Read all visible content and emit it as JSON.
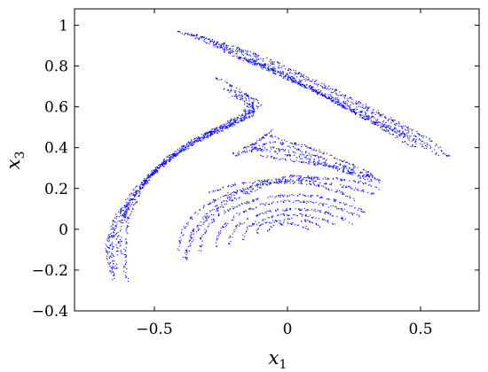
{
  "chart_data": {
    "type": "scatter",
    "title": "",
    "xlabel": "x",
    "xlabel_subscript": "1",
    "ylabel": "x",
    "ylabel_subscript": "3",
    "xlim": [
      -0.8,
      0.72
    ],
    "ylim": [
      -0.4,
      1.08
    ],
    "xticks": [
      -0.5,
      0,
      0.5
    ],
    "xtick_labels": [
      "−0.5",
      "0",
      "0.5"
    ],
    "yticks": [
      -0.4,
      -0.2,
      0,
      0.2,
      0.4,
      0.6,
      0.8,
      1
    ],
    "ytick_labels": [
      "−0.4",
      "−0.2",
      "0",
      "0.2",
      "0.4",
      "0.6",
      "0.8",
      "1"
    ],
    "grid": false,
    "legend": "none",
    "marker_color": "#0000ff",
    "approx_point_count": 4000,
    "series": [
      {
        "structure": "upper-right band",
        "strands": [
          [
            [
              -0.43,
              0.97
            ],
            [
              -0.34,
              0.95
            ],
            [
              -0.22,
              0.9
            ],
            [
              -0.08,
              0.84
            ],
            [
              0.05,
              0.76
            ],
            [
              0.18,
              0.68
            ],
            [
              0.3,
              0.6
            ],
            [
              0.42,
              0.52
            ],
            [
              0.53,
              0.44
            ],
            [
              0.61,
              0.35
            ]
          ],
          [
            [
              -0.39,
              0.96
            ],
            [
              -0.3,
              0.93
            ],
            [
              -0.2,
              0.88
            ],
            [
              -0.07,
              0.82
            ],
            [
              0.06,
              0.74
            ],
            [
              0.19,
              0.66
            ],
            [
              0.31,
              0.58
            ],
            [
              0.43,
              0.5
            ],
            [
              0.52,
              0.42
            ],
            [
              0.57,
              0.36
            ]
          ],
          [
            [
              -0.35,
              0.94
            ],
            [
              -0.26,
              0.9
            ],
            [
              -0.17,
              0.85
            ],
            [
              -0.05,
              0.79
            ],
            [
              0.07,
              0.71
            ],
            [
              0.2,
              0.63
            ],
            [
              0.32,
              0.55
            ],
            [
              0.44,
              0.47
            ],
            [
              0.51,
              0.41
            ]
          ],
          [
            [
              -0.3,
              0.91
            ],
            [
              -0.22,
              0.87
            ],
            [
              -0.14,
              0.82
            ],
            [
              -0.04,
              0.76
            ],
            [
              0.08,
              0.69
            ],
            [
              0.21,
              0.61
            ],
            [
              0.33,
              0.53
            ],
            [
              0.44,
              0.46
            ]
          ],
          [
            [
              -0.24,
              0.87
            ],
            [
              -0.16,
              0.83
            ],
            [
              -0.08,
              0.79
            ],
            [
              0.02,
              0.73
            ],
            [
              0.14,
              0.65
            ],
            [
              0.26,
              0.57
            ],
            [
              0.37,
              0.5
            ],
            [
              0.47,
              0.43
            ],
            [
              0.52,
              0.4
            ]
          ],
          [
            [
              -0.18,
              0.84
            ],
            [
              -0.11,
              0.81
            ],
            [
              -0.03,
              0.77
            ],
            [
              0.06,
              0.71
            ],
            [
              0.17,
              0.63
            ],
            [
              0.28,
              0.55
            ],
            [
              0.38,
              0.48
            ]
          ],
          [
            [
              -0.14,
              0.83
            ],
            [
              -0.07,
              0.79
            ],
            [
              0.0,
              0.74
            ],
            [
              0.1,
              0.68
            ],
            [
              0.2,
              0.61
            ],
            [
              0.31,
              0.53
            ],
            [
              0.4,
              0.46
            ],
            [
              0.48,
              0.4
            ]
          ]
        ]
      },
      {
        "structure": "left horseshoe",
        "strands": [
          [
            [
              -0.22,
              0.68
            ],
            [
              -0.14,
              0.63
            ],
            [
              -0.12,
              0.58
            ],
            [
              -0.22,
              0.52
            ],
            [
              -0.35,
              0.44
            ],
            [
              -0.47,
              0.33
            ],
            [
              -0.57,
              0.2
            ],
            [
              -0.65,
              0.05
            ],
            [
              -0.68,
              -0.08
            ],
            [
              -0.67,
              -0.18
            ],
            [
              -0.65,
              -0.25
            ]
          ],
          [
            [
              -0.21,
              0.66
            ],
            [
              -0.13,
              0.61
            ],
            [
              -0.13,
              0.56
            ],
            [
              -0.25,
              0.49
            ],
            [
              -0.37,
              0.41
            ],
            [
              -0.49,
              0.3
            ],
            [
              -0.58,
              0.17
            ],
            [
              -0.65,
              0.03
            ],
            [
              -0.67,
              -0.1
            ],
            [
              -0.65,
              -0.22
            ]
          ],
          [
            [
              -0.18,
              0.64
            ],
            [
              -0.13,
              0.6
            ],
            [
              -0.16,
              0.54
            ],
            [
              -0.28,
              0.47
            ],
            [
              -0.4,
              0.38
            ],
            [
              -0.51,
              0.27
            ],
            [
              -0.59,
              0.14
            ],
            [
              -0.65,
              0.0
            ],
            [
              -0.66,
              -0.12
            ],
            [
              -0.64,
              -0.2
            ]
          ],
          [
            [
              -0.16,
              0.62
            ],
            [
              -0.14,
              0.58
            ],
            [
              -0.21,
              0.52
            ],
            [
              -0.32,
              0.45
            ],
            [
              -0.43,
              0.36
            ],
            [
              -0.53,
              0.24
            ],
            [
              -0.6,
              0.11
            ],
            [
              -0.64,
              -0.02
            ],
            [
              -0.64,
              -0.13
            ]
          ],
          [
            [
              -0.15,
              0.61
            ],
            [
              -0.17,
              0.56
            ],
            [
              -0.26,
              0.5
            ],
            [
              -0.36,
              0.42
            ],
            [
              -0.46,
              0.33
            ],
            [
              -0.55,
              0.21
            ],
            [
              -0.61,
              0.08
            ],
            [
              -0.63,
              -0.05
            ],
            [
              -0.62,
              -0.12
            ]
          ],
          [
            [
              -0.22,
              0.52
            ],
            [
              -0.31,
              0.47
            ],
            [
              -0.4,
              0.4
            ],
            [
              -0.49,
              0.3
            ],
            [
              -0.56,
              0.17
            ],
            [
              -0.6,
              0.04
            ],
            [
              -0.61,
              -0.08
            ],
            [
              -0.61,
              -0.22
            ],
            [
              -0.6,
              -0.25
            ]
          ],
          [
            [
              -0.24,
              0.69
            ],
            [
              -0.15,
              0.66
            ],
            [
              -0.11,
              0.6
            ],
            [
              -0.18,
              0.53
            ],
            [
              -0.3,
              0.45
            ]
          ],
          [
            [
              -0.27,
              0.74
            ],
            [
              -0.22,
              0.71
            ],
            [
              -0.17,
              0.67
            ],
            [
              -0.11,
              0.63
            ],
            [
              -0.1,
              0.59
            ]
          ]
        ]
      },
      {
        "structure": "middle wedge",
        "strands": [
          [
            [
              -0.2,
              0.37
            ],
            [
              -0.1,
              0.44
            ],
            [
              -0.08,
              0.47
            ],
            [
              -0.03,
              0.44
            ],
            [
              0.08,
              0.4
            ],
            [
              0.2,
              0.34
            ],
            [
              0.3,
              0.28
            ],
            [
              0.35,
              0.24
            ]
          ],
          [
            [
              -0.2,
              0.36
            ],
            [
              -0.1,
              0.41
            ],
            [
              -0.04,
              0.43
            ],
            [
              0.06,
              0.38
            ],
            [
              0.17,
              0.33
            ],
            [
              0.27,
              0.28
            ],
            [
              0.33,
              0.25
            ]
          ],
          [
            [
              -0.15,
              0.38
            ],
            [
              -0.06,
              0.4
            ],
            [
              0.04,
              0.37
            ],
            [
              0.15,
              0.32
            ],
            [
              0.25,
              0.27
            ],
            [
              0.32,
              0.23
            ]
          ],
          [
            [
              -0.05,
              0.49
            ],
            [
              -0.08,
              0.46
            ],
            [
              -0.14,
              0.4
            ],
            [
              -0.05,
              0.38
            ],
            [
              0.05,
              0.35
            ],
            [
              0.15,
              0.31
            ],
            [
              0.24,
              0.27
            ]
          ],
          [
            [
              -0.1,
              0.36
            ],
            [
              0.0,
              0.34
            ],
            [
              0.1,
              0.32
            ],
            [
              0.2,
              0.3
            ],
            [
              0.3,
              0.26
            ],
            [
              0.35,
              0.23
            ]
          ]
        ]
      },
      {
        "structure": "lower fan",
        "strands": [
          [
            [
              -0.39,
              -0.14
            ],
            [
              -0.36,
              -0.05
            ],
            [
              -0.3,
              0.06
            ],
            [
              -0.2,
              0.15
            ],
            [
              -0.08,
              0.22
            ],
            [
              0.05,
              0.25
            ],
            [
              0.17,
              0.25
            ],
            [
              0.27,
              0.23
            ],
            [
              0.34,
              0.2
            ]
          ],
          [
            [
              -0.38,
              -0.15
            ],
            [
              -0.36,
              -0.02
            ],
            [
              -0.3,
              0.08
            ],
            [
              -0.2,
              0.17
            ],
            [
              -0.1,
              0.23
            ],
            [
              0.02,
              0.26
            ],
            [
              0.13,
              0.25
            ]
          ],
          [
            [
              -0.41,
              -0.1
            ],
            [
              -0.39,
              0.0
            ],
            [
              -0.33,
              0.1
            ],
            [
              -0.23,
              0.17
            ],
            [
              -0.1,
              0.22
            ],
            [
              0.0,
              0.23
            ],
            [
              0.1,
              0.22
            ],
            [
              0.2,
              0.18
            ],
            [
              0.26,
              0.14
            ]
          ],
          [
            [
              -0.33,
              -0.12
            ],
            [
              -0.32,
              -0.03
            ],
            [
              -0.27,
              0.06
            ],
            [
              -0.18,
              0.12
            ],
            [
              -0.07,
              0.16
            ],
            [
              0.05,
              0.17
            ],
            [
              0.16,
              0.15
            ],
            [
              0.25,
              0.11
            ],
            [
              0.3,
              0.08
            ]
          ],
          [
            [
              -0.27,
              -0.08
            ],
            [
              -0.25,
              0.0
            ],
            [
              -0.19,
              0.07
            ],
            [
              -0.1,
              0.12
            ],
            [
              0.0,
              0.14
            ],
            [
              0.1,
              0.13
            ],
            [
              0.2,
              0.1
            ],
            [
              0.27,
              0.06
            ]
          ],
          [
            [
              -0.22,
              -0.07
            ],
            [
              -0.2,
              0.0
            ],
            [
              -0.14,
              0.06
            ],
            [
              -0.06,
              0.09
            ],
            [
              0.03,
              0.1
            ],
            [
              0.12,
              0.09
            ],
            [
              0.2,
              0.06
            ],
            [
              0.24,
              0.03
            ]
          ],
          [
            [
              -0.17,
              -0.05
            ],
            [
              -0.15,
              0.01
            ],
            [
              -0.09,
              0.05
            ],
            [
              -0.02,
              0.07
            ],
            [
              0.06,
              0.07
            ],
            [
              0.13,
              0.05
            ],
            [
              0.18,
              0.02
            ]
          ],
          [
            [
              -0.12,
              -0.03
            ],
            [
              -0.1,
              0.02
            ],
            [
              -0.05,
              0.04
            ],
            [
              0.02,
              0.05
            ],
            [
              0.08,
              0.04
            ],
            [
              0.13,
              0.01
            ]
          ],
          [
            [
              -0.08,
              -0.01
            ],
            [
              -0.05,
              0.02
            ],
            [
              0.0,
              0.03
            ],
            [
              0.05,
              0.02
            ],
            [
              0.08,
              0.0
            ]
          ],
          [
            [
              -0.3,
              0.18
            ],
            [
              -0.2,
              0.22
            ],
            [
              -0.08,
              0.24
            ],
            [
              0.05,
              0.24
            ],
            [
              0.18,
              0.22
            ],
            [
              0.28,
              0.19
            ],
            [
              0.33,
              0.17
            ]
          ]
        ]
      }
    ]
  }
}
